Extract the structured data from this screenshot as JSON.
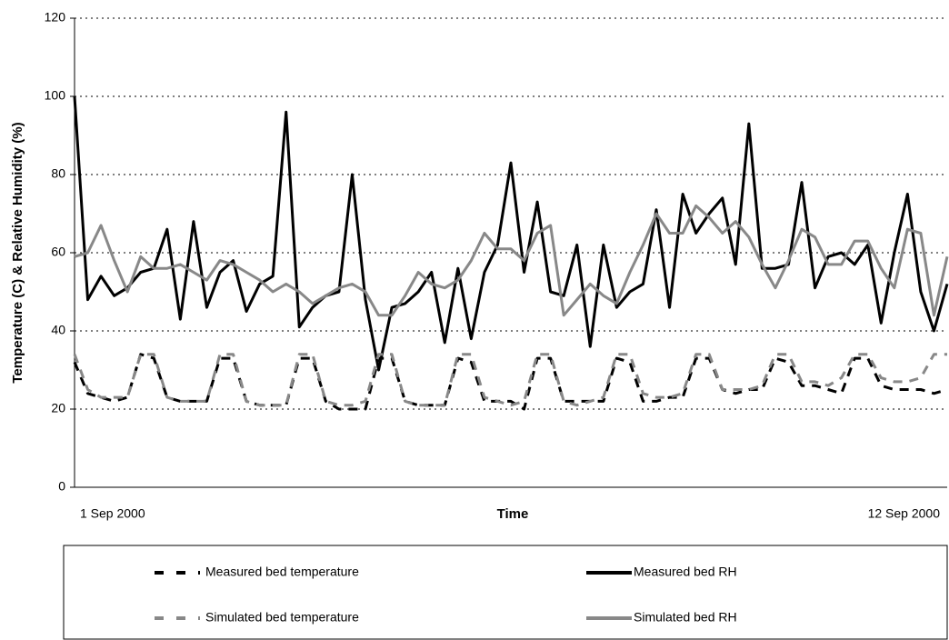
{
  "chart_data": {
    "type": "line",
    "x_label": "Time",
    "y_label": "Temperature (C) & Relative Humidity (%)",
    "categories": [
      "1 Sep 2000",
      null,
      null,
      null,
      null,
      null,
      null,
      null,
      null,
      null,
      null,
      null,
      null,
      null,
      null,
      null,
      null,
      null,
      null,
      null,
      null,
      null,
      null,
      null,
      null,
      null,
      null,
      null,
      null,
      null,
      null,
      null,
      null,
      null,
      null,
      null,
      null,
      null,
      null,
      null,
      null,
      null,
      null,
      null,
      null,
      null,
      null,
      null,
      null,
      null,
      null,
      null,
      null,
      null,
      null,
      null,
      null,
      null,
      null,
      null,
      null,
      null,
      null,
      null,
      null,
      null,
      "12 Sep 2000"
    ],
    "series": [
      {
        "name": "Measured bed temperature",
        "color": "#000000",
        "dashed": true,
        "values": [
          32,
          24,
          23,
          22,
          23,
          34,
          33,
          23,
          22,
          22,
          22,
          33,
          33,
          22,
          21,
          21,
          21,
          33,
          33,
          22,
          20,
          20,
          20,
          33,
          33,
          22,
          21,
          21,
          21,
          33,
          32,
          22,
          22,
          22,
          20,
          33,
          33,
          22,
          22,
          22,
          22,
          33,
          32,
          22,
          22,
          23,
          23,
          33,
          33,
          25,
          24,
          25,
          25,
          33,
          32,
          26,
          26,
          25,
          24,
          33,
          33,
          26,
          25,
          25,
          25,
          24,
          25
        ]
      },
      {
        "name": "Measured bed RH",
        "color": "#000000",
        "dashed": false,
        "values": [
          100,
          48,
          54,
          49,
          51,
          55,
          56,
          66,
          43,
          68,
          46,
          55,
          58,
          45,
          52,
          54,
          96,
          41,
          46,
          49,
          50,
          80,
          48,
          30,
          46,
          47,
          50,
          55,
          37,
          56,
          38,
          55,
          62,
          83,
          55,
          73,
          50,
          49,
          62,
          36,
          62,
          46,
          50,
          52,
          71,
          46,
          75,
          65,
          70,
          74,
          57,
          93,
          56,
          56,
          57,
          78,
          51,
          59,
          60,
          57,
          62,
          42,
          60,
          75,
          50,
          40,
          52
        ]
      },
      {
        "name": "Simulated bed temperature",
        "color": "#888888",
        "dashed": true,
        "values": [
          34,
          25,
          23,
          23,
          23,
          34,
          34,
          23,
          22,
          22,
          22,
          34,
          34,
          22,
          21,
          21,
          21,
          34,
          34,
          22,
          21,
          21,
          22,
          34,
          34,
          22,
          21,
          21,
          21,
          34,
          34,
          23,
          22,
          21,
          22,
          34,
          34,
          22,
          21,
          22,
          23,
          34,
          34,
          24,
          23,
          23,
          24,
          34,
          34,
          25,
          25,
          25,
          26,
          34,
          34,
          27,
          27,
          26,
          28,
          34,
          34,
          28,
          27,
          27,
          28,
          34,
          34
        ]
      },
      {
        "name": "Simulated bed RH",
        "color": "#888888",
        "dashed": false,
        "values": [
          59,
          60,
          67,
          58,
          50,
          59,
          56,
          56,
          57,
          55,
          53,
          58,
          57,
          55,
          53,
          50,
          52,
          50,
          47,
          49,
          51,
          52,
          50,
          44,
          44,
          49,
          55,
          52,
          51,
          53,
          58,
          65,
          61,
          61,
          58,
          65,
          67,
          44,
          48,
          52,
          49,
          47,
          55,
          62,
          70,
          65,
          65,
          72,
          69,
          65,
          68,
          64,
          57,
          51,
          58,
          66,
          64,
          57,
          57,
          63,
          63,
          56,
          51,
          66,
          65,
          44,
          59
        ]
      }
    ],
    "ylim": [
      0,
      120
    ],
    "yticks": [
      0,
      20,
      40,
      60,
      80,
      100,
      120
    ],
    "grid": true
  }
}
